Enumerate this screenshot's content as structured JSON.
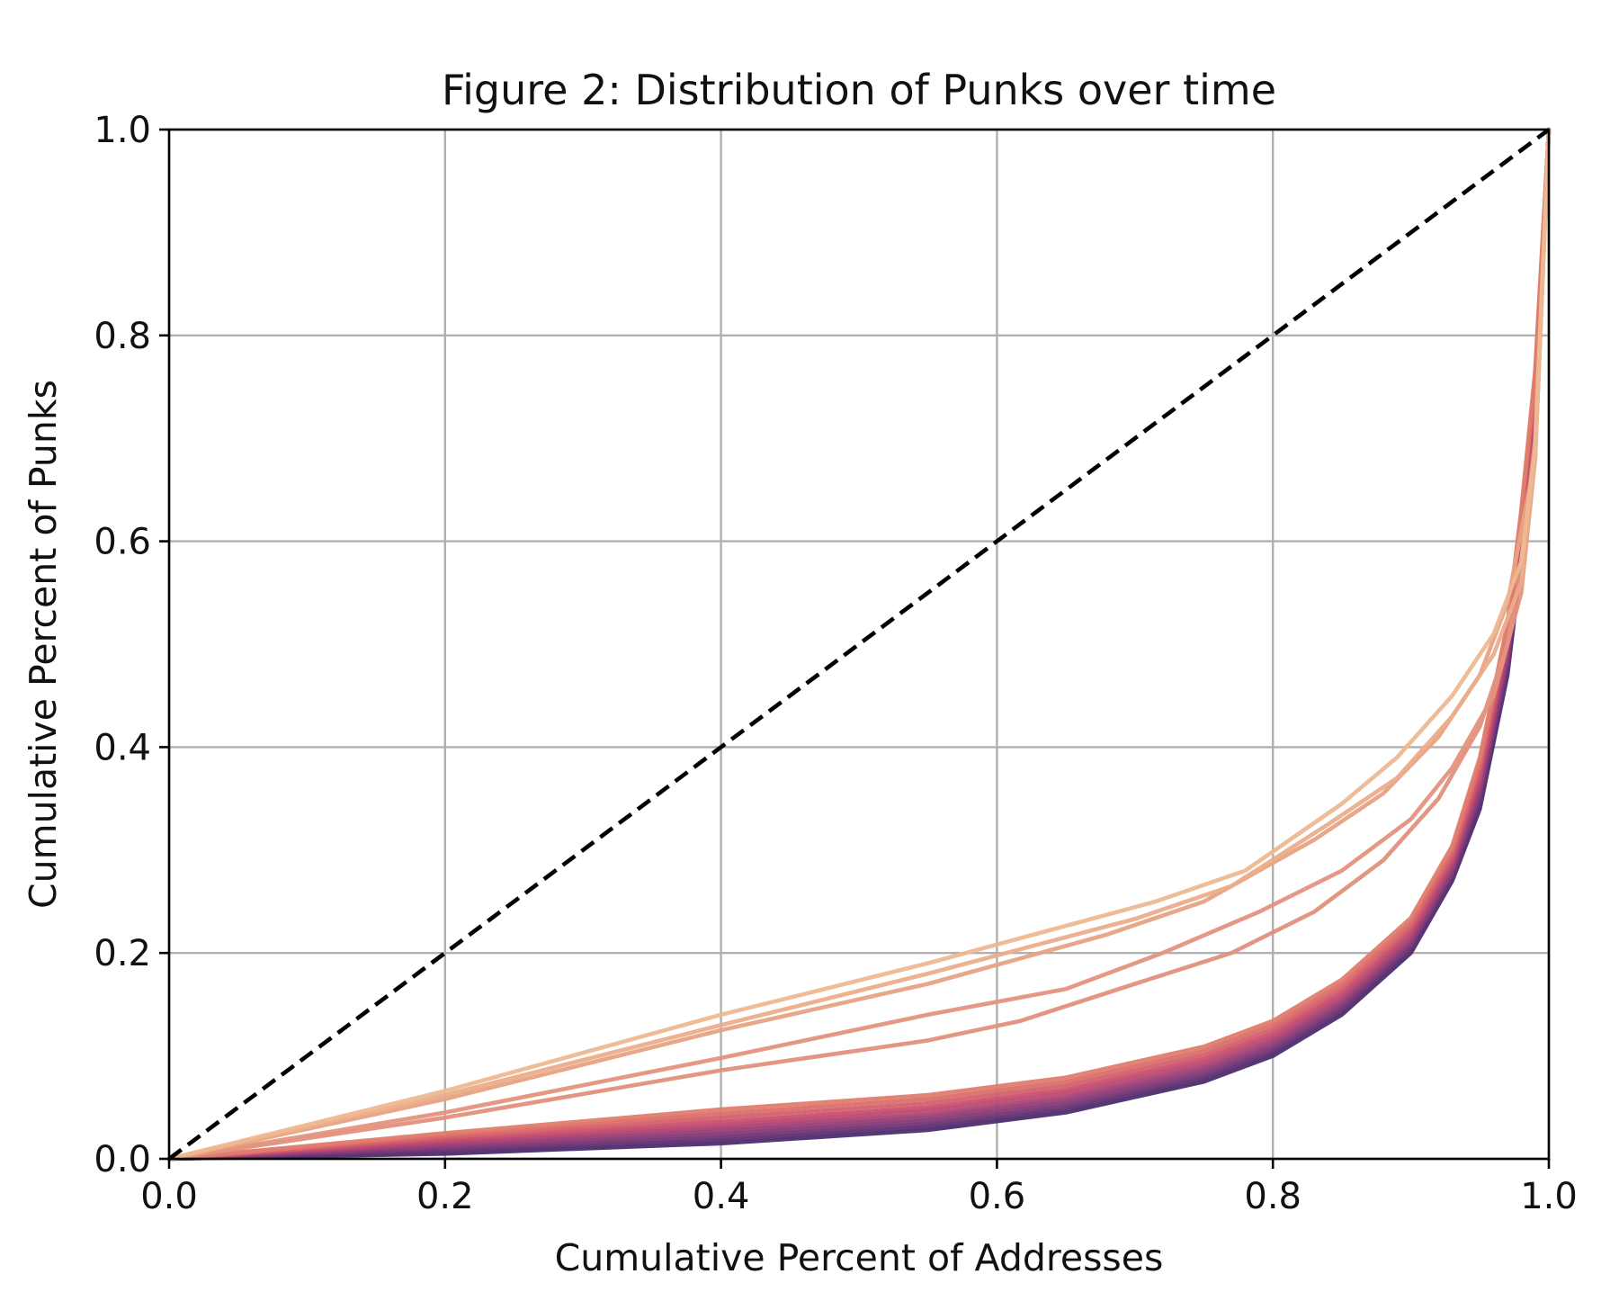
{
  "chart_data": {
    "type": "line",
    "title": "Figure 2: Distribution of Punks over time",
    "xlabel": "Cumulative Percent of Addresses",
    "ylabel": "Cumulative Percent of Punks",
    "xlim": [
      0,
      1
    ],
    "ylim": [
      0,
      1
    ],
    "xticks": [
      "0.0",
      "0.2",
      "0.4",
      "0.6",
      "0.8",
      "1.0"
    ],
    "yticks": [
      "0.0",
      "0.2",
      "0.4",
      "0.6",
      "0.8",
      "1.0"
    ],
    "grid": true,
    "legend": "none",
    "equality_line": {
      "x": [
        0,
        1
      ],
      "y": [
        0,
        1
      ],
      "color": "#000000",
      "style": "dashed"
    },
    "series": [
      {
        "color": "#4b2e6e",
        "x": [
          0,
          0.2,
          0.4,
          0.55,
          0.65,
          0.75,
          0.8,
          0.85,
          0.9,
          0.93,
          0.95,
          0.97,
          0.98,
          0.99,
          1.0
        ],
        "y": [
          0,
          0.005,
          0.015,
          0.028,
          0.045,
          0.075,
          0.1,
          0.14,
          0.2,
          0.27,
          0.34,
          0.47,
          0.58,
          0.72,
          1.0
        ]
      },
      {
        "color": "#5c3273",
        "x": [
          0,
          0.2,
          0.4,
          0.55,
          0.65,
          0.75,
          0.8,
          0.85,
          0.9,
          0.93,
          0.95,
          0.97,
          0.98,
          0.99,
          1.0
        ],
        "y": [
          0,
          0.007,
          0.018,
          0.031,
          0.048,
          0.078,
          0.103,
          0.143,
          0.203,
          0.273,
          0.345,
          0.475,
          0.585,
          0.72,
          1.0
        ]
      },
      {
        "color": "#6e3776",
        "x": [
          0,
          0.2,
          0.4,
          0.55,
          0.65,
          0.75,
          0.8,
          0.85,
          0.9,
          0.93,
          0.95,
          0.97,
          0.98,
          0.99,
          1.0
        ],
        "y": [
          0,
          0.009,
          0.021,
          0.034,
          0.051,
          0.081,
          0.106,
          0.146,
          0.206,
          0.276,
          0.35,
          0.48,
          0.59,
          0.725,
          1.0
        ]
      },
      {
        "color": "#803c78",
        "x": [
          0,
          0.2,
          0.4,
          0.55,
          0.65,
          0.75,
          0.8,
          0.85,
          0.9,
          0.93,
          0.95,
          0.97,
          0.98,
          0.99,
          1.0
        ],
        "y": [
          0,
          0.011,
          0.024,
          0.037,
          0.054,
          0.084,
          0.109,
          0.149,
          0.209,
          0.279,
          0.355,
          0.485,
          0.595,
          0.73,
          1.0
        ]
      },
      {
        "color": "#933f78",
        "x": [
          0,
          0.2,
          0.4,
          0.55,
          0.65,
          0.75,
          0.8,
          0.85,
          0.9,
          0.93,
          0.95,
          0.97,
          0.98,
          0.99,
          1.0
        ],
        "y": [
          0,
          0.013,
          0.027,
          0.04,
          0.057,
          0.087,
          0.112,
          0.152,
          0.212,
          0.282,
          0.36,
          0.49,
          0.6,
          0.735,
          1.0
        ]
      },
      {
        "color": "#a64377",
        "x": [
          0,
          0.2,
          0.4,
          0.55,
          0.65,
          0.75,
          0.8,
          0.85,
          0.9,
          0.93,
          0.95,
          0.97,
          0.98,
          0.99,
          1.0
        ],
        "y": [
          0,
          0.015,
          0.03,
          0.043,
          0.06,
          0.09,
          0.115,
          0.155,
          0.215,
          0.285,
          0.365,
          0.495,
          0.605,
          0.74,
          1.0
        ]
      },
      {
        "color": "#b94974",
        "x": [
          0,
          0.2,
          0.4,
          0.55,
          0.65,
          0.75,
          0.8,
          0.85,
          0.9,
          0.93,
          0.95,
          0.97,
          0.98,
          0.99,
          1.0
        ],
        "y": [
          0,
          0.017,
          0.033,
          0.047,
          0.064,
          0.094,
          0.119,
          0.159,
          0.219,
          0.289,
          0.37,
          0.5,
          0.61,
          0.745,
          1.0
        ]
      },
      {
        "color": "#c95170",
        "x": [
          0,
          0.2,
          0.4,
          0.55,
          0.65,
          0.75,
          0.8,
          0.85,
          0.9,
          0.93,
          0.95,
          0.97,
          0.98,
          0.99,
          1.0
        ],
        "y": [
          0,
          0.019,
          0.036,
          0.05,
          0.067,
          0.097,
          0.122,
          0.162,
          0.222,
          0.292,
          0.375,
          0.505,
          0.615,
          0.75,
          1.0
        ]
      },
      {
        "color": "#d4606d",
        "x": [
          0,
          0.2,
          0.4,
          0.55,
          0.65,
          0.75,
          0.8,
          0.85,
          0.9,
          0.93,
          0.95,
          0.97,
          0.98,
          0.99,
          1.0
        ],
        "y": [
          0,
          0.021,
          0.04,
          0.054,
          0.071,
          0.101,
          0.126,
          0.166,
          0.226,
          0.296,
          0.38,
          0.51,
          0.62,
          0.755,
          1.0
        ]
      },
      {
        "color": "#db6e6a",
        "x": [
          0,
          0.2,
          0.4,
          0.55,
          0.65,
          0.75,
          0.8,
          0.85,
          0.9,
          0.93,
          0.95,
          0.97,
          0.98,
          0.99,
          1.0
        ],
        "y": [
          0,
          0.023,
          0.044,
          0.058,
          0.075,
          0.105,
          0.13,
          0.17,
          0.23,
          0.3,
          0.385,
          0.515,
          0.625,
          0.76,
          1.0
        ]
      },
      {
        "color": "#e07d6e",
        "x": [
          0,
          0.2,
          0.4,
          0.55,
          0.65,
          0.75,
          0.8,
          0.85,
          0.9,
          0.93,
          0.95,
          0.97,
          0.98,
          0.99,
          1.0
        ],
        "y": [
          0,
          0.025,
          0.048,
          0.062,
          0.079,
          0.109,
          0.134,
          0.174,
          0.234,
          0.304,
          0.39,
          0.52,
          0.63,
          0.765,
          1.0
        ]
      },
      {
        "color": "#e2907c",
        "x": [
          0,
          0.2,
          0.4,
          0.55,
          0.617,
          0.7,
          0.77,
          0.83,
          0.88,
          0.92,
          0.95,
          0.97,
          0.98,
          0.99,
          1.0
        ],
        "y": [
          0,
          0.04,
          0.086,
          0.115,
          0.134,
          0.17,
          0.2,
          0.24,
          0.29,
          0.35,
          0.42,
          0.5,
          0.58,
          0.7,
          1.0
        ]
      },
      {
        "color": "#e4947e",
        "x": [
          0,
          0.2,
          0.4,
          0.55,
          0.65,
          0.72,
          0.79,
          0.85,
          0.9,
          0.93,
          0.96,
          0.98,
          0.99,
          1.0
        ],
        "y": [
          0,
          0.045,
          0.098,
          0.14,
          0.165,
          0.2,
          0.24,
          0.28,
          0.33,
          0.38,
          0.45,
          0.55,
          0.68,
          1.0
        ]
      },
      {
        "color": "#e8a283",
        "x": [
          0,
          0.2,
          0.4,
          0.55,
          0.68,
          0.75,
          0.83,
          0.88,
          0.92,
          0.95,
          0.97,
          0.99,
          1.0
        ],
        "y": [
          0,
          0.058,
          0.125,
          0.17,
          0.218,
          0.25,
          0.31,
          0.355,
          0.41,
          0.47,
          0.54,
          0.68,
          1.0
        ]
      },
      {
        "color": "#ebad8a",
        "x": [
          0,
          0.2,
          0.4,
          0.55,
          0.7,
          0.77,
          0.84,
          0.89,
          0.93,
          0.96,
          0.98,
          0.99,
          1.0
        ],
        "y": [
          0,
          0.062,
          0.13,
          0.18,
          0.233,
          0.265,
          0.325,
          0.37,
          0.43,
          0.49,
          0.56,
          0.68,
          1.0
        ]
      },
      {
        "color": "#eeb892",
        "x": [
          0,
          0.2,
          0.4,
          0.55,
          0.715,
          0.78,
          0.85,
          0.89,
          0.93,
          0.96,
          0.98,
          0.99,
          1.0
        ],
        "y": [
          0,
          0.066,
          0.14,
          0.19,
          0.25,
          0.28,
          0.345,
          0.39,
          0.45,
          0.51,
          0.58,
          0.69,
          1.0
        ]
      }
    ]
  }
}
